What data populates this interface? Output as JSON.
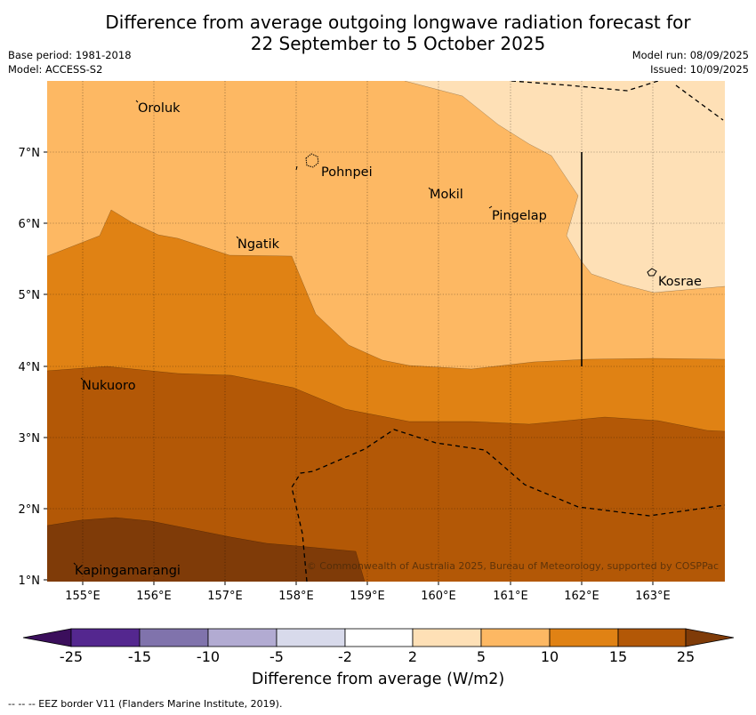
{
  "title": {
    "line1": "Difference from average outgoing longwave radiation forecast for",
    "line2": "22 September to 5 October 2025"
  },
  "meta": {
    "base_period": "Base period: 1981-2018",
    "model": "Model: ACCESS-S2",
    "model_run": "Model run: 08/09/2025",
    "issued": "Issued: 10/09/2025"
  },
  "map": {
    "copyright": "© Commonwealth of Australia 2025, Bureau of Meteorology, supported by COSPPac",
    "x_ticks": [
      "155°E",
      "156°E",
      "157°E",
      "158°E",
      "159°E",
      "160°E",
      "161°E",
      "162°E",
      "163°E"
    ],
    "y_ticks": [
      "7°N",
      "6°N",
      "5°N",
      "4°N",
      "3°N",
      "2°N",
      "1°N"
    ],
    "places": [
      "Oroluk",
      "Pohnpei",
      "Mokil",
      "Pingelap",
      "Ngatik",
      "Kosrae",
      "Nukuoro",
      "Kapingamarangi"
    ]
  },
  "colorbar": {
    "title": "Difference from average (W/m2)",
    "ticks": [
      "-25",
      "-15",
      "-10",
      "-5",
      "-2",
      "2",
      "5",
      "10",
      "15",
      "25"
    ],
    "colors": {
      "lt_m25": "#3b0f5c",
      "m25_m15": "#54278f",
      "m15_m10": "#8073ac",
      "m10_m5": "#b2abd2",
      "m5_m2": "#d8daeb",
      "m2_2": "#ffffff",
      "p2_5": "#fee0b6",
      "p5_10": "#fdb863",
      "p10_15": "#e08214",
      "p15_25": "#b35806",
      "gt_25": "#7f3b08"
    }
  },
  "footnote": "--  --  -- EEZ border V11 (Flanders Marine Institute, 2019)."
}
